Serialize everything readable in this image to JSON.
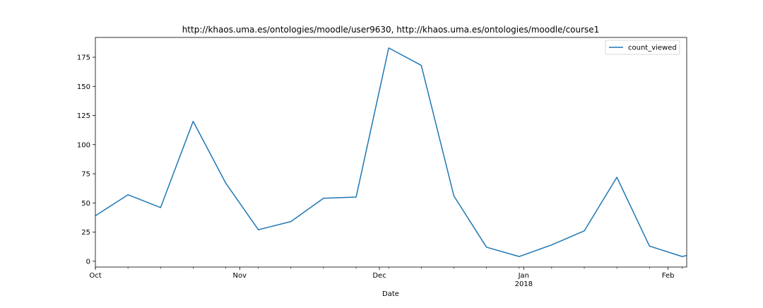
{
  "chart_data": {
    "type": "line",
    "title": "http://khaos.uma.es/ontologies/moodle/user9630, http://khaos.uma.es/ontologies/moodle/course1",
    "xlabel": "Date",
    "ylabel": "",
    "x_axis_type": "date",
    "xlim": [
      "2017-10-01",
      "2018-02-05"
    ],
    "ylim": [
      -5,
      192
    ],
    "x": [
      "2017-10-01",
      "2017-10-08",
      "2017-10-15",
      "2017-10-22",
      "2017-10-29",
      "2017-11-05",
      "2017-11-12",
      "2017-11-19",
      "2017-11-26",
      "2017-12-03",
      "2017-12-10",
      "2017-12-17",
      "2017-12-24",
      "2017-12-31",
      "2018-01-07",
      "2018-01-14",
      "2018-01-21",
      "2018-01-28",
      "2018-02-04",
      "2018-02-11"
    ],
    "series": [
      {
        "name": "count_viewed",
        "color": "#1f77b4",
        "values": [
          39,
          57,
          46,
          120,
          67,
          27,
          34,
          54,
          55,
          183,
          168,
          56,
          12,
          4,
          14,
          26,
          72,
          13,
          4,
          10
        ]
      }
    ],
    "y_ticks": [
      0,
      25,
      50,
      75,
      100,
      125,
      150,
      175
    ],
    "x_ticks": [
      {
        "date": "2017-10-01",
        "label": "Oct",
        "sublabel": ""
      },
      {
        "date": "2017-11-01",
        "label": "Nov",
        "sublabel": ""
      },
      {
        "date": "2017-12-01",
        "label": "Dec",
        "sublabel": ""
      },
      {
        "date": "2018-01-01",
        "label": "Jan",
        "sublabel": "2018"
      },
      {
        "date": "2018-02-01",
        "label": "Feb",
        "sublabel": ""
      }
    ],
    "legend": {
      "position": "upper right",
      "entries": [
        "count_viewed"
      ]
    },
    "grid": false
  }
}
